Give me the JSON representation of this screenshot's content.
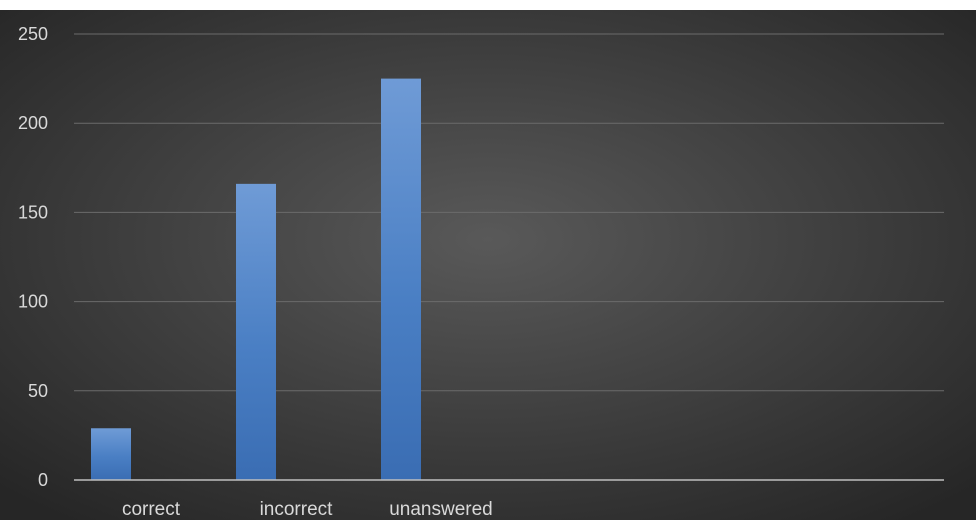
{
  "chart_data": {
    "type": "bar",
    "categories": [
      "correct",
      "incorrect",
      "unanswered",
      "",
      "",
      ""
    ],
    "series": [
      {
        "values": [
          29,
          166,
          225,
          null,
          null,
          null
        ]
      }
    ],
    "title": "",
    "xlabel": "",
    "ylabel": "",
    "ylim": [
      0,
      250
    ],
    "yticks": [
      0,
      50,
      100,
      150,
      200,
      250
    ],
    "ytick_labels": [
      "0",
      "50",
      "100",
      "150",
      "200",
      "250"
    ],
    "grid": true,
    "legend": "none"
  },
  "colors": {
    "bar": "#4a7fc4",
    "bar_light": "#6f9bd6",
    "bar_dark": "#3a6db3",
    "background_center": "#595959",
    "background_edge": "#262626",
    "grid": "#6b6b6b",
    "axis": "#bfbfbf",
    "text": "#d9d9d9"
  }
}
